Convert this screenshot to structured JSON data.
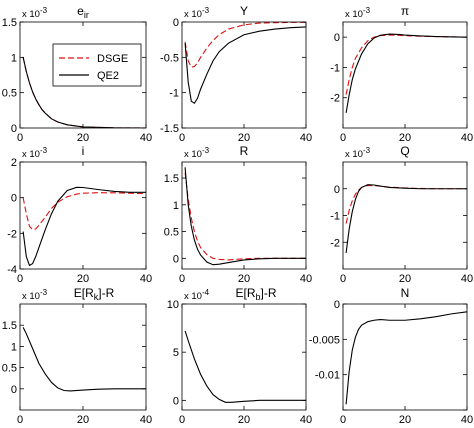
{
  "figure": {
    "legend": {
      "entries": [
        "DSGE",
        "QE2"
      ],
      "placement": "inside first panel"
    }
  },
  "chart_data": [
    {
      "type": "line",
      "title": "e_ir",
      "multiplier": "x 10^-3",
      "xlim": [
        0,
        40
      ],
      "ylim": [
        0,
        1.5
      ],
      "xticks": [
        0,
        20,
        40
      ],
      "xtick_labels": [
        "0",
        "20",
        "40"
      ],
      "yticks": [
        0,
        0.5,
        1,
        1.5
      ],
      "ytick_labels": [
        "0",
        "0.5",
        "1",
        "1.5"
      ],
      "series": [
        {
          "name": "DSGE",
          "color": "#dd1111",
          "dash": "dashed",
          "x": [
            1,
            2,
            3,
            4,
            5,
            6,
            7,
            8,
            10,
            12,
            15,
            20,
            30,
            40
          ],
          "y": [
            1.0,
            0.8,
            0.64,
            0.51,
            0.41,
            0.33,
            0.26,
            0.21,
            0.13,
            0.085,
            0.045,
            0.015,
            0.002,
            0
          ]
        },
        {
          "name": "QE2",
          "color": "#000000",
          "dash": "solid",
          "x": [
            1,
            2,
            3,
            4,
            5,
            6,
            7,
            8,
            10,
            12,
            15,
            20,
            30,
            40
          ],
          "y": [
            1.0,
            0.8,
            0.64,
            0.51,
            0.41,
            0.33,
            0.26,
            0.21,
            0.13,
            0.085,
            0.045,
            0.015,
            0.002,
            0
          ]
        }
      ]
    },
    {
      "type": "line",
      "title": "Y",
      "multiplier": "x 10^-3",
      "xlim": [
        0,
        40
      ],
      "ylim": [
        -1.5,
        0
      ],
      "xticks": [
        0,
        20,
        40
      ],
      "xtick_labels": [
        "0",
        "20",
        "40"
      ],
      "yticks": [
        -1.5,
        -1,
        -0.5,
        0
      ],
      "ytick_labels": [
        "-1.5",
        "-1",
        "-0.5",
        "0"
      ],
      "series": [
        {
          "name": "DSGE",
          "color": "#dd1111",
          "dash": "dashed",
          "x": [
            1,
            2,
            3,
            4,
            5,
            6,
            8,
            10,
            12,
            15,
            20,
            25,
            30,
            35,
            40
          ],
          "y": [
            -0.28,
            -0.55,
            -0.64,
            -0.63,
            -0.58,
            -0.5,
            -0.37,
            -0.26,
            -0.18,
            -0.1,
            -0.04,
            -0.015,
            -0.01,
            -0.005,
            -0.005
          ]
        },
        {
          "name": "QE2",
          "color": "#000000",
          "dash": "solid",
          "x": [
            1,
            2,
            3,
            4,
            5,
            6,
            8,
            10,
            12,
            15,
            20,
            25,
            30,
            35,
            40
          ],
          "y": [
            -0.3,
            -0.85,
            -1.12,
            -1.15,
            -1.08,
            -0.95,
            -0.74,
            -0.55,
            -0.42,
            -0.3,
            -0.18,
            -0.13,
            -0.1,
            -0.08,
            -0.07
          ]
        }
      ]
    },
    {
      "type": "line",
      "title": "π",
      "multiplier": "x 10^-3",
      "xlim": [
        0,
        40
      ],
      "ylim": [
        -3,
        0.5
      ],
      "xticks": [
        0,
        20,
        40
      ],
      "xtick_labels": [
        "0",
        "20",
        "40"
      ],
      "yticks": [
        -2,
        -1,
        0
      ],
      "ytick_labels": [
        "-2",
        "-1",
        "0"
      ],
      "series": [
        {
          "name": "DSGE",
          "color": "#dd1111",
          "dash": "dashed",
          "x": [
            1,
            2,
            3,
            4,
            6,
            8,
            10,
            12,
            15,
            18,
            20,
            25,
            30,
            40
          ],
          "y": [
            -1.9,
            -1.4,
            -1.0,
            -0.7,
            -0.35,
            -0.12,
            0.0,
            0.05,
            0.07,
            0.06,
            0.05,
            0.03,
            0.02,
            0.0
          ]
        },
        {
          "name": "QE2",
          "color": "#000000",
          "dash": "solid",
          "x": [
            1,
            2,
            3,
            4,
            6,
            8,
            10,
            12,
            15,
            18,
            20,
            25,
            30,
            40
          ],
          "y": [
            -2.5,
            -1.9,
            -1.4,
            -1.05,
            -0.55,
            -0.22,
            -0.03,
            0.06,
            0.1,
            0.09,
            0.07,
            0.04,
            0.02,
            0.0
          ]
        }
      ]
    },
    {
      "type": "line",
      "title": "i",
      "multiplier": "x 10^-3",
      "xlim": [
        0,
        40
      ],
      "ylim": [
        -4,
        2
      ],
      "xticks": [
        0,
        20,
        40
      ],
      "xtick_labels": [
        "0",
        "20",
        "40"
      ],
      "yticks": [
        -4,
        -2,
        0,
        2
      ],
      "ytick_labels": [
        "-4",
        "-2",
        "0",
        "2"
      ],
      "series": [
        {
          "name": "DSGE",
          "color": "#dd1111",
          "dash": "dashed",
          "x": [
            1,
            2,
            3,
            4,
            5,
            6,
            8,
            10,
            12,
            15,
            18,
            20,
            25,
            30,
            35,
            40
          ],
          "y": [
            0.0,
            -0.9,
            -1.6,
            -1.8,
            -1.75,
            -1.55,
            -1.1,
            -0.6,
            -0.25,
            0.05,
            0.2,
            0.25,
            0.28,
            0.27,
            0.25,
            0.22
          ]
        },
        {
          "name": "QE2",
          "color": "#000000",
          "dash": "solid",
          "x": [
            1,
            2,
            3,
            4,
            5,
            6,
            8,
            10,
            12,
            15,
            18,
            20,
            25,
            30,
            35,
            40
          ],
          "y": [
            -1.9,
            -3.3,
            -3.8,
            -3.7,
            -3.3,
            -2.8,
            -1.8,
            -0.9,
            -0.2,
            0.4,
            0.58,
            0.57,
            0.45,
            0.35,
            0.3,
            0.3
          ]
        }
      ]
    },
    {
      "type": "line",
      "title": "R",
      "multiplier": "x 10^-3",
      "xlim": [
        0,
        40
      ],
      "ylim": [
        -0.2,
        1.8
      ],
      "xticks": [
        0,
        20,
        40
      ],
      "xtick_labels": [
        "0",
        "20",
        "40"
      ],
      "yticks": [
        0,
        0.5,
        1,
        1.5
      ],
      "ytick_labels": [
        "0",
        "0.5",
        "1",
        "1.5"
      ],
      "series": [
        {
          "name": "DSGE",
          "color": "#dd1111",
          "dash": "dashed",
          "x": [
            1,
            2,
            3,
            4,
            5,
            6,
            8,
            10,
            12,
            15,
            20,
            25,
            30,
            40
          ],
          "y": [
            1.6,
            1.1,
            0.75,
            0.5,
            0.32,
            0.2,
            0.07,
            0.0,
            -0.02,
            -0.03,
            -0.01,
            0.0,
            0.0,
            0.0
          ]
        },
        {
          "name": "QE2",
          "color": "#000000",
          "dash": "solid",
          "x": [
            1,
            2,
            3,
            4,
            5,
            6,
            8,
            10,
            12,
            15,
            20,
            25,
            30,
            40
          ],
          "y": [
            1.7,
            1.0,
            0.6,
            0.34,
            0.17,
            0.06,
            -0.07,
            -0.12,
            -0.11,
            -0.08,
            -0.03,
            -0.01,
            0.0,
            0.0
          ]
        }
      ]
    },
    {
      "type": "line",
      "title": "Q",
      "multiplier": "x 10^-3",
      "xlim": [
        0,
        40
      ],
      "ylim": [
        -3,
        1
      ],
      "xticks": [
        0,
        20,
        40
      ],
      "xtick_labels": [
        "0",
        "20",
        "40"
      ],
      "yticks": [
        -2,
        -1,
        0
      ],
      "ytick_labels": [
        "-2",
        "-1",
        "0"
      ],
      "series": [
        {
          "name": "DSGE",
          "color": "#dd1111",
          "dash": "dashed",
          "x": [
            1,
            2,
            3,
            4,
            5,
            6,
            8,
            10,
            12,
            15,
            20,
            25,
            30,
            40
          ],
          "y": [
            -1.3,
            -0.8,
            -0.45,
            -0.2,
            -0.05,
            0.05,
            0.12,
            0.12,
            0.1,
            0.06,
            0.03,
            0.01,
            0.0,
            0.0
          ]
        },
        {
          "name": "QE2",
          "color": "#000000",
          "dash": "solid",
          "x": [
            1,
            2,
            3,
            4,
            5,
            6,
            8,
            10,
            12,
            15,
            20,
            25,
            30,
            40
          ],
          "y": [
            -2.4,
            -1.5,
            -0.85,
            -0.4,
            -0.1,
            0.05,
            0.15,
            0.14,
            0.1,
            0.05,
            0.02,
            0.0,
            0.0,
            0.0
          ]
        }
      ]
    },
    {
      "type": "line",
      "title": "E[R_k]-R",
      "multiplier": "x 10^-3",
      "xlim": [
        0,
        40
      ],
      "ylim": [
        -0.5,
        2.0
      ],
      "xticks": [
        0,
        20,
        40
      ],
      "xtick_labels": [
        "0",
        "20",
        "40"
      ],
      "yticks": [
        0,
        0.5,
        1,
        1.5
      ],
      "ytick_labels": [
        "0",
        "0.5",
        "1",
        "1.5"
      ],
      "series": [
        {
          "name": "QE2",
          "color": "#000000",
          "dash": "solid",
          "x": [
            1,
            2,
            4,
            6,
            8,
            10,
            12,
            14,
            16,
            20,
            25,
            30,
            40
          ],
          "y": [
            1.45,
            1.3,
            0.95,
            0.6,
            0.35,
            0.15,
            0.02,
            -0.04,
            -0.05,
            -0.03,
            -0.01,
            0.0,
            0.0
          ]
        }
      ]
    },
    {
      "type": "line",
      "title": "E[R_b]-R",
      "multiplier": "x 10^-4",
      "xlim": [
        0,
        40
      ],
      "ylim": [
        -1,
        10
      ],
      "xticks": [
        0,
        20,
        40
      ],
      "xtick_labels": [
        "0",
        "20",
        "40"
      ],
      "yticks": [
        0,
        5,
        10
      ],
      "ytick_labels": [
        "0",
        "5",
        "10"
      ],
      "series": [
        {
          "name": "QE2",
          "color": "#000000",
          "dash": "solid",
          "x": [
            1,
            2,
            4,
            6,
            8,
            10,
            12,
            14,
            16,
            20,
            25,
            30,
            40
          ],
          "y": [
            7.2,
            6.2,
            4.3,
            2.7,
            1.5,
            0.6,
            0.1,
            -0.2,
            -0.2,
            -0.1,
            0.0,
            0.0,
            0.0
          ]
        }
      ]
    },
    {
      "type": "line",
      "title": "N",
      "multiplier": "",
      "xlim": [
        0,
        40
      ],
      "ylim": [
        -0.015,
        0
      ],
      "xticks": [
        0,
        20,
        40
      ],
      "xtick_labels": [
        "0",
        "20",
        "40"
      ],
      "yticks": [
        -0.015,
        -0.01,
        -0.005,
        0
      ],
      "ytick_labels": [
        "",
        "-0.01",
        "-0.005",
        "0"
      ],
      "series": [
        {
          "name": "QE2",
          "color": "#000000",
          "dash": "solid",
          "x": [
            1,
            2,
            3,
            4,
            5,
            6,
            8,
            10,
            12,
            15,
            20,
            25,
            30,
            35,
            40
          ],
          "y": [
            -0.0142,
            -0.0095,
            -0.0065,
            -0.0047,
            -0.0036,
            -0.003,
            -0.0025,
            -0.0023,
            -0.0022,
            -0.0023,
            -0.0023,
            -0.0021,
            -0.0018,
            -0.0014,
            -0.0011
          ]
        }
      ]
    }
  ]
}
